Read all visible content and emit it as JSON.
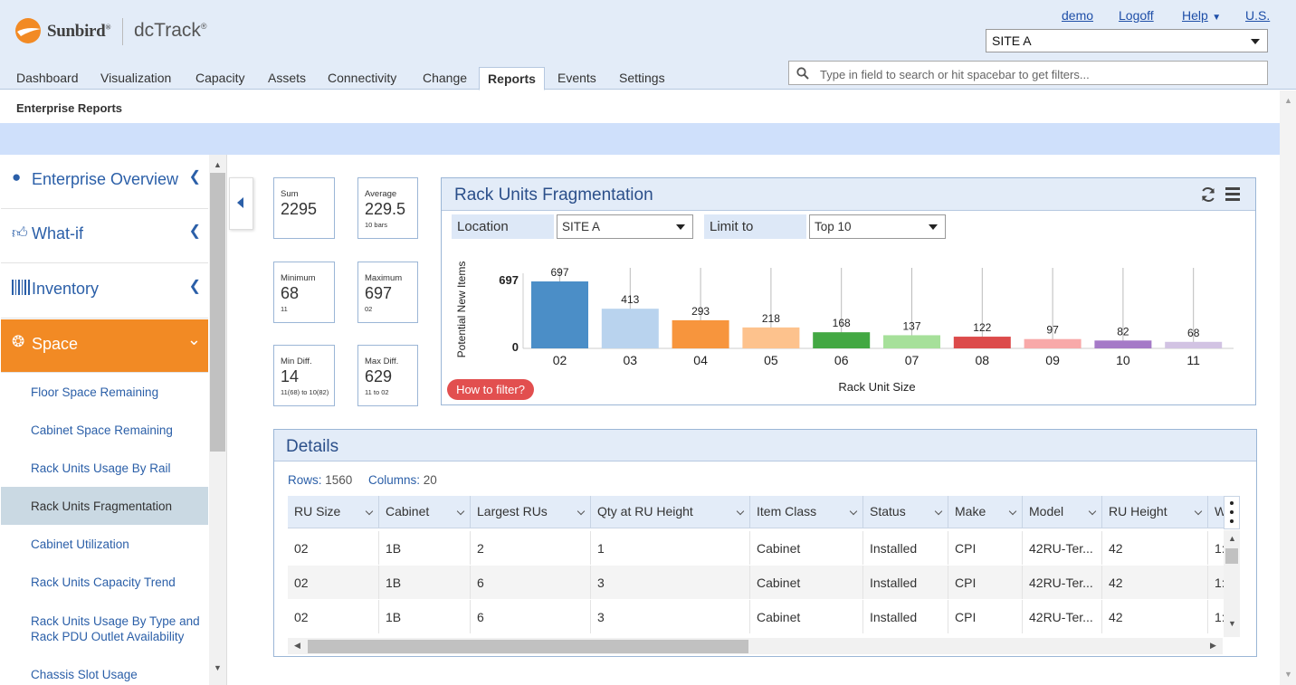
{
  "brand": {
    "company": "Sunbird",
    "reg": "®",
    "product": "dcTrack",
    "product_reg": "®"
  },
  "top_links": {
    "user": "demo",
    "logoff": "Logoff",
    "help": "Help",
    "locale": "U.S."
  },
  "site_selector": {
    "value": "SITE A"
  },
  "search": {
    "placeholder": "Type in field to search or hit spacebar to get filters..."
  },
  "nav_tabs": [
    "Dashboard",
    "Visualization",
    "Capacity",
    "Assets",
    "Connectivity",
    "Change",
    "Reports",
    "Events",
    "Settings"
  ],
  "active_tab": "Reports",
  "subheader": "Enterprise Reports",
  "sidebar": {
    "sections": [
      {
        "label": "Enterprise Overview",
        "icon": "globe-icon"
      },
      {
        "label": "What-if",
        "icon": "thumbs-up-icon"
      },
      {
        "label": "Inventory",
        "icon": "barcode-icon"
      },
      {
        "label": "Space",
        "icon": "space-icon",
        "expanded": true
      }
    ],
    "items": [
      "Floor Space Remaining",
      "Cabinet Space Remaining",
      "Rack Units Usage By Rail",
      "Rack Units Fragmentation",
      "Cabinet Utilization",
      "Rack Units Capacity Trend",
      "Rack Units Usage By Type and Rack PDU Outlet Availability",
      "Chassis Slot Usage"
    ],
    "active_item": "Rack Units Fragmentation"
  },
  "stats": [
    {
      "title": "Sum",
      "value": "2295",
      "sub": ""
    },
    {
      "title": "Average",
      "value": "229.5",
      "sub": "10 bars"
    },
    {
      "title": "Minimum",
      "value": "68",
      "sub": "11"
    },
    {
      "title": "Maximum",
      "value": "697",
      "sub": "02"
    },
    {
      "title": "Min Diff.",
      "value": "14",
      "sub": "11(68) to 10(82)"
    },
    {
      "title": "Max Diff.",
      "value": "629",
      "sub": "11 to 02"
    }
  ],
  "chart_panel": {
    "title": "Rack Units Fragmentation",
    "location_label": "Location",
    "location_value": "SITE A",
    "limit_label": "Limit to",
    "limit_value": "Top 10",
    "how_to_filter": "How to filter?"
  },
  "chart_data": {
    "type": "bar",
    "xlabel": "Rack Unit Size",
    "ylabel": "Potential New Items",
    "ylim": [
      0,
      697
    ],
    "yticks": [
      "0",
      "697"
    ],
    "categories": [
      "02",
      "03",
      "04",
      "05",
      "06",
      "07",
      "08",
      "09",
      "10",
      "11"
    ],
    "values": [
      697,
      413,
      293,
      218,
      168,
      137,
      122,
      97,
      82,
      68
    ],
    "colors": [
      "#4b8ec7",
      "#b9d3ee",
      "#f7953d",
      "#fdc28d",
      "#43a843",
      "#a6e09a",
      "#dc4b4b",
      "#f8a9a9",
      "#a57ac7",
      "#d2c3e3"
    ],
    "grid": false,
    "legend": "none"
  },
  "details": {
    "title": "Details",
    "rows_label": "Rows:",
    "rows_value": "1560",
    "cols_label": "Columns:",
    "cols_value": "20",
    "columns": [
      "RU Size",
      "Cabinet",
      "Largest RUs",
      "Qty at RU Height",
      "Item Class",
      "Status",
      "Make",
      "Model",
      "RU Height",
      "W"
    ],
    "rows": [
      [
        "02",
        "1B",
        "2",
        "1",
        "Cabinet",
        "Installed",
        "CPI",
        "42RU-Ter...",
        "42",
        "1:"
      ],
      [
        "02",
        "1B",
        "6",
        "3",
        "Cabinet",
        "Installed",
        "CPI",
        "42RU-Ter...",
        "42",
        "1:"
      ],
      [
        "02",
        "1B",
        "6",
        "3",
        "Cabinet",
        "Installed",
        "CPI",
        "42RU-Ter...",
        "42",
        "1:"
      ]
    ]
  }
}
